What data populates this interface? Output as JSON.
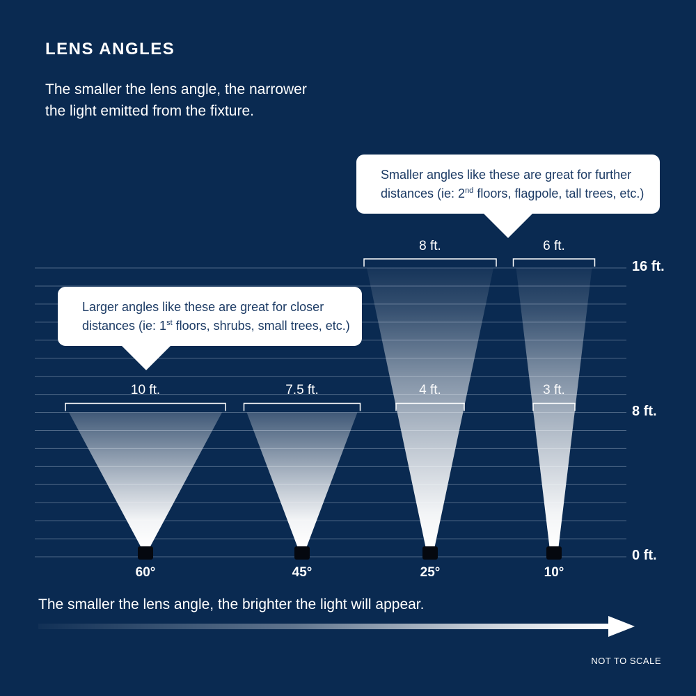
{
  "header": {
    "title": "LENS ANGLES",
    "subtitle_lines": [
      "The smaller the lens angle, the narrower",
      "the light emitted from the fixture."
    ]
  },
  "callouts": {
    "smaller": {
      "line1": "Smaller angles like these are great for further",
      "line2_pre": "distances (ie: 2",
      "line2_sup": "nd",
      "line2_post": " floors, flagpole, tall trees, etc.)"
    },
    "larger": {
      "line1": "Larger angles like these are great for closer",
      "line2_pre": "distances (ie: 1",
      "line2_sup": "st",
      "line2_post": " floors, shrubs, small trees, etc.)"
    }
  },
  "axis": {
    "labels": [
      "16 ft.",
      "8 ft.",
      "0 ft."
    ],
    "unit": "ft",
    "range": [
      0,
      16
    ]
  },
  "cones": [
    {
      "angle_label": "60°",
      "angle_deg": 60,
      "beam_reach_ft": 8,
      "top_width_ft": 10,
      "top_width_label": "10 ft."
    },
    {
      "angle_label": "45°",
      "angle_deg": 45,
      "beam_reach_ft": 8,
      "top_width_ft": 7.5,
      "top_width_label": "7.5 ft."
    },
    {
      "angle_label": "25°",
      "angle_deg": 25,
      "beam_reach_ft": 16,
      "top_width_ft": 8,
      "top_width_label": "8 ft.",
      "mid_height_ft": 8,
      "mid_width_ft": 4,
      "mid_width_label": "4 ft."
    },
    {
      "angle_label": "10°",
      "angle_deg": 10,
      "beam_reach_ft": 16,
      "top_width_ft": 6,
      "top_width_label": "6 ft.",
      "mid_height_ft": 8,
      "mid_width_ft": 3,
      "mid_width_label": "3 ft."
    }
  ],
  "footer": {
    "caption": "The smaller the lens angle, the brighter the light will appear.",
    "scale_note": "NOT TO SCALE"
  },
  "colors": {
    "background": "#0A2A51",
    "text_light": "#FFFFFF",
    "callout_bg": "#FFFFFF",
    "callout_text": "#1B3A64",
    "gridline": "#93A5BE",
    "fixture": "#05080F",
    "beam": "#FFFFFF"
  }
}
